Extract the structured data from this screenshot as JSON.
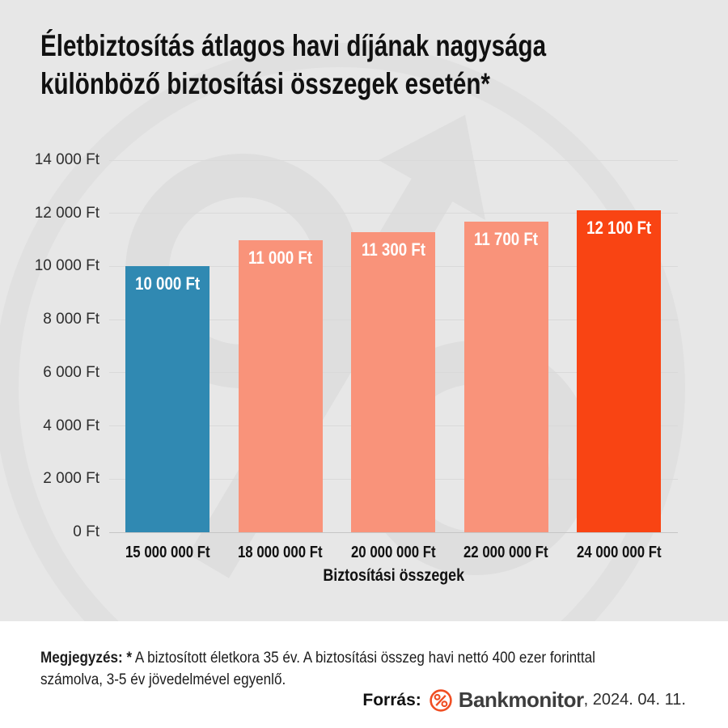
{
  "title": {
    "line1": "Életbiztosítás átlagos havi díjának nagysága",
    "line2": "különböző biztosítási összegek esetén*"
  },
  "chart_data": {
    "type": "bar",
    "categories": [
      "15 000 000 Ft",
      "18 000 000 Ft",
      "20 000 000 Ft",
      "22 000 000 Ft",
      "24 000 000 Ft"
    ],
    "values": [
      10000,
      11000,
      11300,
      11700,
      12100
    ],
    "value_labels": [
      "10 000 Ft",
      "11 000 Ft",
      "11 300 Ft",
      "11 700 Ft",
      "12 100 Ft"
    ],
    "bar_colors": [
      "#3089b2",
      "#f9937a",
      "#f9937a",
      "#f9937a",
      "#f94413"
    ],
    "xlabel": "Biztosítási összegek",
    "ylabel": "",
    "ylim": [
      0,
      14000
    ],
    "ytick_step": 2000,
    "yticks_top_down": [
      "14 000 Ft",
      "12 000 Ft",
      "10 000 Ft",
      "8 000 Ft",
      "6 000 Ft",
      "4 000 Ft",
      "2 000 Ft",
      "0 Ft"
    ],
    "grid": true,
    "legend": "none"
  },
  "note": {
    "label": "Megjegyzés: *",
    "line1_rest": " A biztosított életkora 35 év. A biztosítási összeg havi nettó 400 ezer forinttal",
    "line2": "számolva, 3-5 év jövedelmével egyenlő."
  },
  "source": {
    "label": "Forrás:",
    "brand": "Bankmonitor",
    "date": ", 2024. 04. 11."
  },
  "colors": {
    "panel_background": "#e7e7e7",
    "footer_background": "#ffffff",
    "watermark": "#dedede",
    "gridline": "#d9d9d9",
    "axis_line": "#c5c5c5",
    "title_text": "#111111",
    "tick_text": "#2d2d2d",
    "bar_blue": "#3089b2",
    "bar_salmon": "#f9937a",
    "bar_red": "#f94413",
    "logo_orange": "#f04e23",
    "brand_text": "#3d3d3d"
  }
}
